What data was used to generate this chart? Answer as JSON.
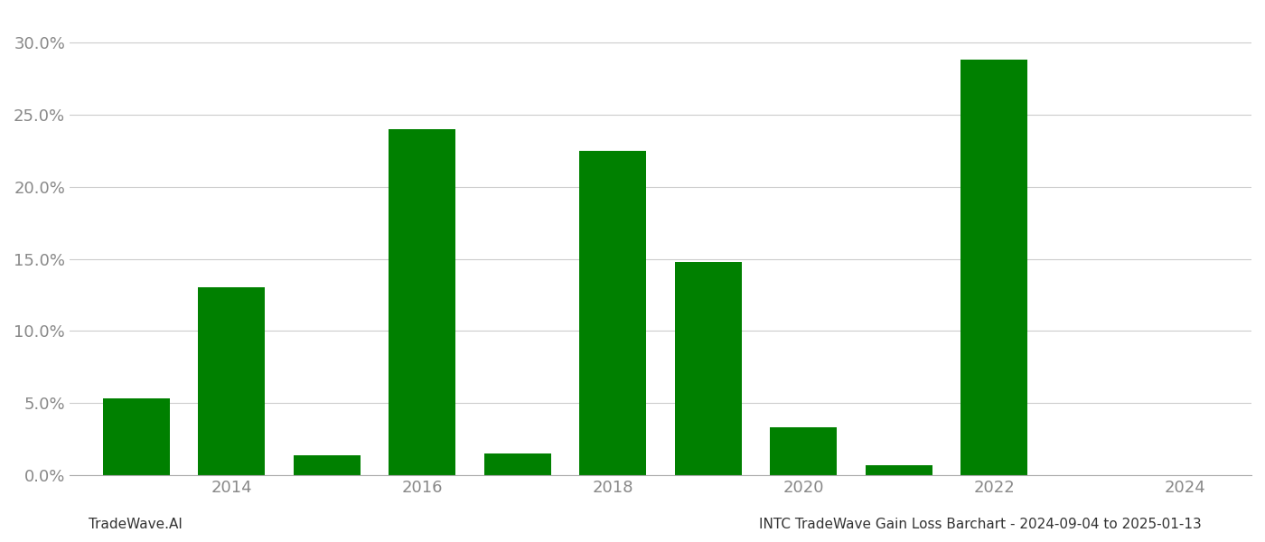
{
  "years": [
    2013,
    2014,
    2015,
    2016,
    2017,
    2018,
    2019,
    2020,
    2021,
    2022,
    2023
  ],
  "values": [
    0.053,
    0.13,
    0.014,
    0.24,
    0.015,
    0.225,
    0.148,
    0.033,
    0.007,
    0.288,
    0.0
  ],
  "bar_color": "#008000",
  "title_right": "INTC TradeWave Gain Loss Barchart - 2024-09-04 to 2025-01-13",
  "title_left": "TradeWave.AI",
  "ylim": [
    0,
    0.32
  ],
  "yticks": [
    0.0,
    0.05,
    0.1,
    0.15,
    0.2,
    0.25,
    0.3
  ],
  "xtick_positions": [
    2014,
    2016,
    2018,
    2020,
    2022,
    2024
  ],
  "xtick_labels": [
    "2014",
    "2016",
    "2018",
    "2020",
    "2022",
    "2024"
  ],
  "grid_color": "#cccccc",
  "background_color": "#ffffff",
  "bar_width": 0.7,
  "title_fontsize": 11,
  "tick_label_color": "#888888",
  "tick_fontsize": 13,
  "xlim": [
    2012.3,
    2024.7
  ]
}
